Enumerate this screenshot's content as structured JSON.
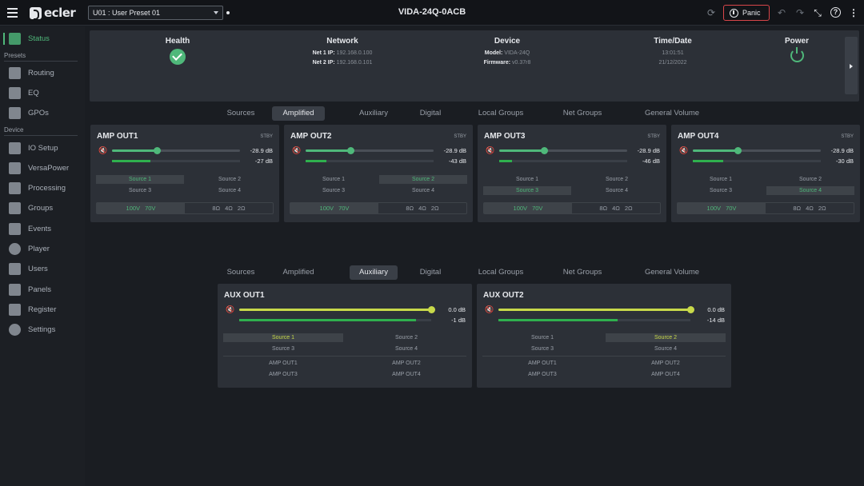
{
  "topbar": {
    "preset": "U01 : User Preset 01",
    "device_title": "VIDA-24Q-0ACB",
    "panic_label": "Panic",
    "logo_text": "ecler"
  },
  "sidebar": {
    "groups": [
      "Presets",
      "Device"
    ],
    "items": [
      {
        "label": "Status",
        "icon": "bar-chart-icon",
        "active": true
      },
      {
        "label": "Routing",
        "icon": "routing-icon"
      },
      {
        "label": "EQ",
        "icon": "eq-icon"
      },
      {
        "label": "GPOs",
        "icon": "gpo-icon"
      },
      {
        "label": "IO Setup",
        "icon": "wrench-icon"
      },
      {
        "label": "VersaPower",
        "icon": "lightning-icon"
      },
      {
        "label": "Processing",
        "icon": "chip-icon"
      },
      {
        "label": "Groups",
        "icon": "speaker-icon"
      },
      {
        "label": "Events",
        "icon": "calendar-icon"
      },
      {
        "label": "Player",
        "icon": "play-icon"
      },
      {
        "label": "Users",
        "icon": "users-icon"
      },
      {
        "label": "Panels",
        "icon": "panel-icon"
      },
      {
        "label": "Register",
        "icon": "document-icon"
      },
      {
        "label": "Settings",
        "icon": "gear-icon"
      }
    ]
  },
  "status": {
    "health": {
      "title": "Health"
    },
    "network": {
      "title": "Network",
      "net1_label": "Net 1 IP:",
      "net1": "192.168.0.100",
      "net2_label": "Net 2 IP:",
      "net2": "192.168.0.101"
    },
    "device": {
      "title": "Device",
      "model_label": "Model:",
      "model": "VIDA-24Q",
      "firmware_label": "Firmware:",
      "firmware": "v0.37r8"
    },
    "datetime": {
      "title": "Time/Date",
      "time": "13:01:51",
      "date": "21/12/2022"
    },
    "power": {
      "title": "Power"
    }
  },
  "tabs": [
    "Sources",
    "Amplified",
    "Auxiliary",
    "Digital",
    "Local Groups",
    "Net Groups",
    "General Volume"
  ],
  "tabs_top_active": "Amplified",
  "tabs_bottom_active": "Auxiliary",
  "amp_outputs": [
    {
      "title": "AMP OUT1",
      "stby": "STBY",
      "gain": "-28.9 dB",
      "level": "-27 dB",
      "gain_pct": 35,
      "level_pct": 30,
      "sources": [
        "Source 1",
        "Source 2",
        "Source 3",
        "Source 4"
      ],
      "selected": 0,
      "voltages": [
        "100V",
        "70V"
      ],
      "impedances": [
        "8Ω",
        "4Ω",
        "2Ω"
      ]
    },
    {
      "title": "AMP OUT2",
      "stby": "STBY",
      "gain": "-28.9 dB",
      "level": "-43 dB",
      "gain_pct": 35,
      "level_pct": 16,
      "sources": [
        "Source 1",
        "Source 2",
        "Source 3",
        "Source 4"
      ],
      "selected": 1,
      "voltages": [
        "100V",
        "70V"
      ],
      "impedances": [
        "8Ω",
        "4Ω",
        "2Ω"
      ]
    },
    {
      "title": "AMP OUT3",
      "stby": "STBY",
      "gain": "-28.9 dB",
      "level": "-46 dB",
      "gain_pct": 35,
      "level_pct": 10,
      "sources": [
        "Source 1",
        "Source 2",
        "Source 3",
        "Source 4"
      ],
      "selected": 2,
      "voltages": [
        "100V",
        "70V"
      ],
      "impedances": [
        "8Ω",
        "4Ω",
        "2Ω"
      ]
    },
    {
      "title": "AMP OUT4",
      "stby": "STBY",
      "gain": "-28.9 dB",
      "level": "-30 dB",
      "gain_pct": 35,
      "level_pct": 24,
      "sources": [
        "Source 1",
        "Source 2",
        "Source 3",
        "Source 4"
      ],
      "selected": 3,
      "voltages": [
        "100V",
        "70V"
      ],
      "impedances": [
        "8Ω",
        "4Ω",
        "2Ω"
      ]
    }
  ],
  "aux_outputs": [
    {
      "title": "AUX OUT1",
      "gain": "0.0 dB",
      "level": "-1 dB",
      "gain_pct": 100,
      "level_pct": 92,
      "sources": [
        "Source 1",
        "Source 2",
        "Source 3",
        "Source 4"
      ],
      "selected": 0,
      "amps": [
        "AMP OUT1",
        "AMP OUT2",
        "AMP OUT3",
        "AMP OUT4"
      ]
    },
    {
      "title": "AUX OUT2",
      "gain": "0.0 dB",
      "level": "-14 dB",
      "gain_pct": 100,
      "level_pct": 62,
      "sources": [
        "Source 1",
        "Source 2",
        "Source 3",
        "Source 4"
      ],
      "selected": 1,
      "amps": [
        "AMP OUT1",
        "AMP OUT2",
        "AMP OUT3",
        "AMP OUT4"
      ]
    }
  ],
  "colors": {
    "accent_green": "#4fb87a",
    "aux_yellow": "#c8d94a",
    "meter_green": "#2fb04e",
    "panic_red": "#d9464a"
  }
}
